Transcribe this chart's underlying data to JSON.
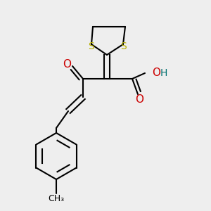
{
  "bg_color": "#eeeeee",
  "bond_color": "#000000",
  "sulfur_color": "#b8b000",
  "oxygen_color": "#cc0000",
  "hydrogen_color": "#007070",
  "line_width": 1.5,
  "figsize": [
    3.0,
    3.0
  ],
  "dpi": 100,
  "xlim": [
    0,
    300
  ],
  "ylim": [
    0,
    300
  ]
}
